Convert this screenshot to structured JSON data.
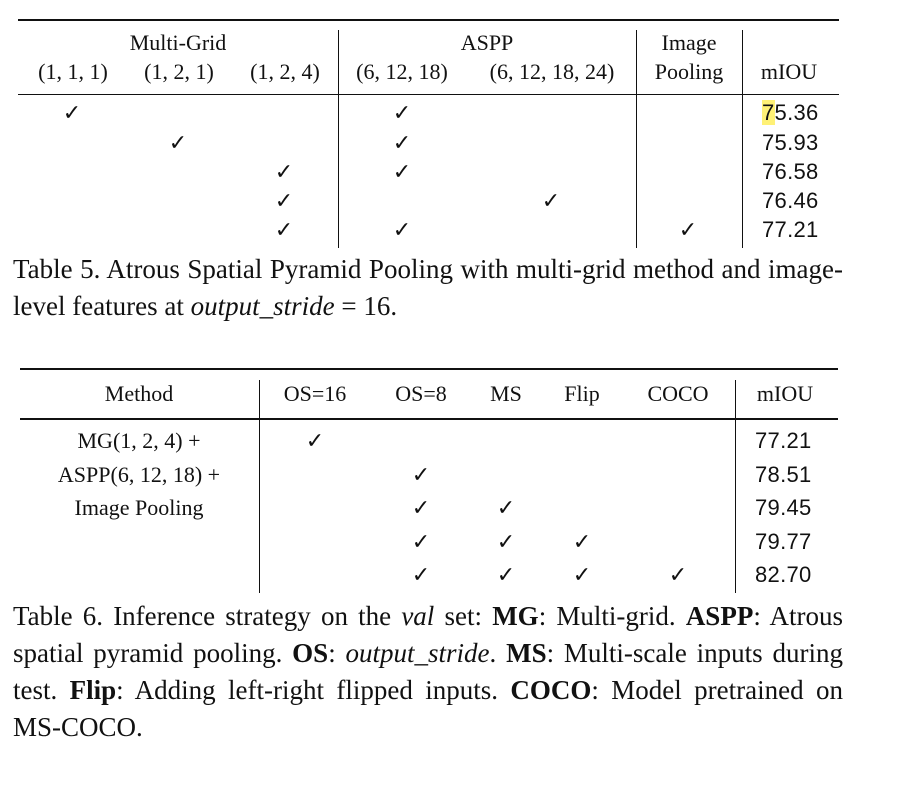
{
  "table5": {
    "group_headers": {
      "multigrid": "Multi-Grid",
      "aspp": "ASPP",
      "image_line1": "Image"
    },
    "col_headers": [
      "(1, 1, 1)",
      "(1, 2, 1)",
      "(1, 2, 4)",
      "(6, 12, 18)",
      "(6, 12, 18, 24)",
      "Pooling",
      "mIOU"
    ],
    "check": "✓",
    "rows": [
      {
        "checks": [
          true,
          false,
          false,
          true,
          false,
          false
        ],
        "miou": "75.36"
      },
      {
        "checks": [
          false,
          true,
          false,
          true,
          false,
          false
        ],
        "miou": "75.93"
      },
      {
        "checks": [
          false,
          false,
          true,
          true,
          false,
          false
        ],
        "miou": "76.58"
      },
      {
        "checks": [
          false,
          false,
          true,
          false,
          true,
          false
        ],
        "miou": "76.46"
      },
      {
        "checks": [
          false,
          false,
          true,
          true,
          false,
          true
        ],
        "miou": "77.21"
      }
    ],
    "miou_first_highlight": "7",
    "miou_first_rest": "5.36",
    "caption": {
      "label": "Table 5. Atrous Spatial Pyramid Pooling with multi-grid method and image-level features at",
      "term": "output_stride",
      "eq": "= 16."
    }
  },
  "table6": {
    "col_headers": [
      "Method",
      "OS=16",
      "OS=8",
      "MS",
      "Flip",
      "COCO",
      "mIOU"
    ],
    "method_lines": [
      "MG(1, 2, 4) +",
      "ASPP(6, 12, 18) +",
      "Image Pooling"
    ],
    "check": "✓",
    "rows": [
      {
        "checks": [
          true,
          false,
          false,
          false,
          false
        ],
        "miou": "77.21"
      },
      {
        "checks": [
          false,
          true,
          false,
          false,
          false
        ],
        "miou": "78.51"
      },
      {
        "checks": [
          false,
          true,
          true,
          false,
          false
        ],
        "miou": "79.45"
      },
      {
        "checks": [
          false,
          true,
          true,
          true,
          false
        ],
        "miou": "79.77"
      },
      {
        "checks": [
          false,
          true,
          true,
          true,
          true
        ],
        "miou": "82.70"
      }
    ],
    "caption": {
      "p1": "Table 6. Inference strategy on the",
      "val": "val",
      "p2": "set:",
      "mg": "MG",
      "mg_def": ": Multi-grid.",
      "aspp": "ASPP",
      "aspp_def": ": Atrous spatial pyramid pooling.",
      "os": "OS",
      "os_colon": ":",
      "os_def": "output_stride",
      "os_end": ".",
      "ms": "MS",
      "ms_def": ": Multi-scale inputs during test.",
      "flip": "Flip",
      "flip_def": ": Adding left-right flipped inputs.",
      "coco": "COCO",
      "coco_def": ": Model pretrained on MS-COCO."
    }
  }
}
